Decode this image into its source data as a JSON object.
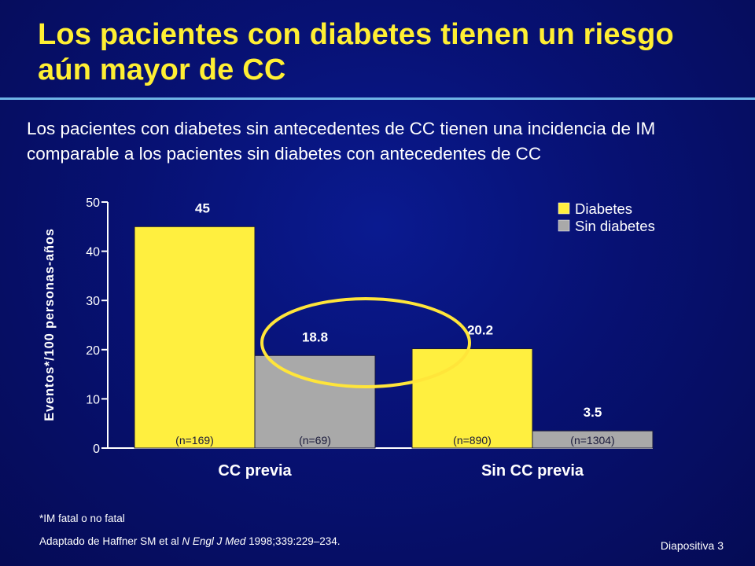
{
  "slide": {
    "title": "Los pacientes con diabetes tienen un riesgo aún mayor de CC",
    "subtitle": "Los pacientes con diabetes sin antecedentes de CC tienen una incidencia de IM comparable a los pacientes sin diabetes con antecedentes de CC",
    "footnote_label": "*IM fatal o no fatal",
    "reference_prefix": "Adaptado de Haffner SM et al ",
    "reference_journal": "N Engl J Med",
    "reference_suffix": " 1998;339:229–234.",
    "slide_number": "Diapositiva 3"
  },
  "colors": {
    "title": "#ffef33",
    "diabetes": "#ffef3f",
    "no_diabetes": "#a9a9a9",
    "highlight_ellipse": "#ffe53a"
  },
  "chart_data": {
    "type": "bar",
    "ylabel": "Eventos*/100 personas-años",
    "ylim": [
      0,
      50
    ],
    "yticks": [
      "0",
      "10",
      "20",
      "30",
      "40",
      "50"
    ],
    "categories": [
      "CC previa",
      "Sin CC previa"
    ],
    "series": [
      {
        "name": "Diabetes",
        "values": [
          45,
          20.2
        ],
        "labels": [
          "45",
          "20.2"
        ],
        "n": [
          "(n=169)",
          "(n=890)"
        ]
      },
      {
        "name": "Sin diabetes",
        "values": [
          18.8,
          3.5
        ],
        "labels": [
          "18.8",
          "3.5"
        ],
        "n": [
          "(n=69)",
          "(n=1304)"
        ]
      }
    ],
    "legend_position": "top-right",
    "grid": false,
    "annotation": "ellipse highlighting Sin diabetes in CC previa (18.8) and Diabetes in Sin CC previa (20.2)"
  }
}
